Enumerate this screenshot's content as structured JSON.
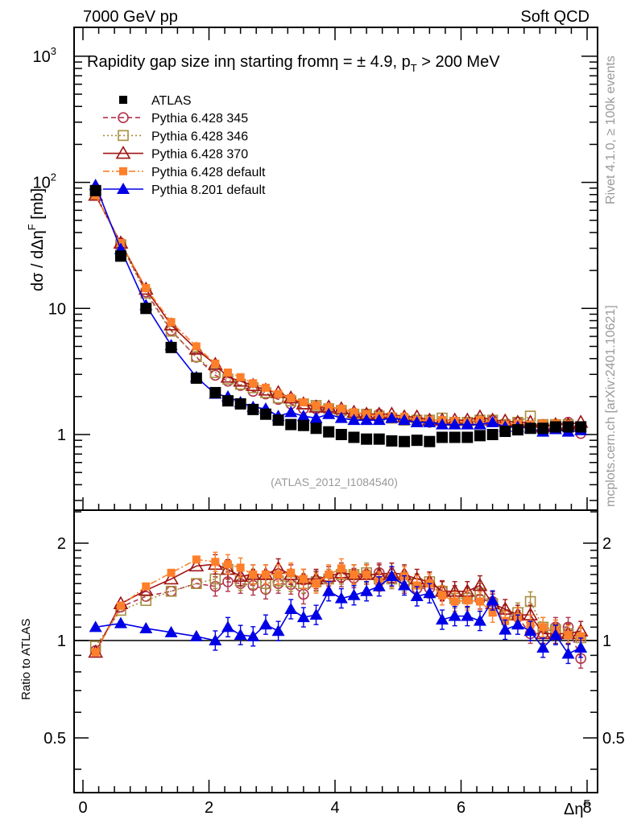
{
  "header": {
    "left": "7000 GeV pp",
    "right": "Soft QCD"
  },
  "side_labels": {
    "rivet": "Rivet 4.1.0, ≥ 100k events",
    "mcplots": "mcplots.cern.ch [arXiv:2401.10621]"
  },
  "chart_data": [
    {
      "type": "line",
      "panel": "main",
      "title": "Rapidity gap size in η starting from η = ± 4.9, p_T > 200 MeV",
      "title_parts": {
        "main": "Rapidity gap size inη starting fromη = ± 4.9, p",
        "sub": "T",
        "tail": " > 200 MeV"
      },
      "ylabel": "dσ / dΔη",
      "ylabel_sup": "F",
      "ylabel_unit": " [mb]",
      "xlabel": "Δη",
      "xlabel_sup": "F",
      "yscale": "log",
      "ylim": [
        0.3,
        1700
      ],
      "xlim": [
        -0.15,
        8.15
      ],
      "yticks": [
        {
          "v": 1,
          "label": "1"
        },
        {
          "v": 10,
          "label": "10"
        },
        {
          "v": 100,
          "label": "10",
          "sup": "2"
        },
        {
          "v": 1000,
          "label": "10",
          "sup": "3"
        }
      ],
      "watermark": "(ATLAS_2012_I1084540)",
      "legend": "top-left",
      "x": [
        0.2,
        0.6,
        1.0,
        1.4,
        1.8,
        2.1,
        2.3,
        2.5,
        2.7,
        2.9,
        3.1,
        3.3,
        3.5,
        3.7,
        3.9,
        4.1,
        4.3,
        4.5,
        4.7,
        4.9,
        5.1,
        5.3,
        5.5,
        5.7,
        5.9,
        6.1,
        6.3,
        6.5,
        6.7,
        6.9,
        7.1,
        7.3,
        7.5,
        7.7,
        7.9
      ],
      "series": [
        {
          "name": "ATLAS",
          "color": "#000000",
          "marker": "square-filled",
          "line": "none",
          "values": [
            86,
            26,
            10,
            4.9,
            2.8,
            2.15,
            1.85,
            1.75,
            1.58,
            1.45,
            1.3,
            1.2,
            1.18,
            1.12,
            1.05,
            1.0,
            0.95,
            0.92,
            0.92,
            0.89,
            0.88,
            0.9,
            0.88,
            0.95,
            0.95,
            0.95,
            0.98,
            1.0,
            1.06,
            1.09,
            1.12,
            1.12,
            1.15,
            1.15,
            1.15
          ]
        },
        {
          "name": "Pythia 6.428 345",
          "color": "#b2334c",
          "marker": "circle-open",
          "line": "dashed",
          "values": [
            79,
            33,
            13.5,
            6.7,
            4.1,
            2.95,
            2.65,
            2.45,
            2.2,
            2.1,
            1.9,
            1.75,
            1.6,
            1.6,
            1.6,
            1.5,
            1.45,
            1.45,
            1.45,
            1.35,
            1.3,
            1.3,
            1.25,
            1.25,
            1.25,
            1.25,
            1.3,
            1.3,
            1.2,
            1.25,
            1.15,
            1.2,
            1.2,
            1.25,
            1.02
          ]
        },
        {
          "name": "Pythia 6.428 346",
          "color": "#a98d3f",
          "marker": "square-open",
          "line": "dotted",
          "values": [
            81,
            32,
            13.2,
            6.6,
            4.15,
            3.1,
            2.75,
            2.5,
            2.35,
            2.15,
            1.95,
            1.85,
            1.75,
            1.7,
            1.6,
            1.55,
            1.45,
            1.45,
            1.4,
            1.35,
            1.3,
            1.3,
            1.3,
            1.35,
            1.25,
            1.25,
            1.3,
            1.3,
            1.2,
            1.25,
            1.4,
            1.2,
            1.2,
            1.2,
            1.15
          ]
        },
        {
          "name": "Pythia 6.428 370",
          "color": "#a01414",
          "marker": "triangle-open",
          "line": "solid",
          "values": [
            79,
            33,
            14.2,
            7.4,
            4.75,
            3.6,
            2.85,
            2.65,
            2.45,
            2.25,
            2.15,
            1.95,
            1.75,
            1.65,
            1.65,
            1.6,
            1.5,
            1.45,
            1.45,
            1.45,
            1.38,
            1.38,
            1.3,
            1.3,
            1.3,
            1.3,
            1.38,
            1.3,
            1.28,
            1.25,
            1.25,
            1.15,
            1.2,
            1.2,
            1.25
          ]
        },
        {
          "name": "Pythia 6.428 default",
          "color": "#ff7f2a",
          "marker": "square-filled-small",
          "line": "dashdot",
          "values": [
            79,
            33,
            14.5,
            7.8,
            5.0,
            3.65,
            3.1,
            2.85,
            2.55,
            2.35,
            2.1,
            1.95,
            1.8,
            1.7,
            1.65,
            1.6,
            1.5,
            1.45,
            1.4,
            1.4,
            1.38,
            1.3,
            1.3,
            1.3,
            1.28,
            1.25,
            1.3,
            1.25,
            1.2,
            1.22,
            1.2,
            1.22,
            1.22,
            1.2,
            1.18
          ]
        },
        {
          "name": "Pythia 8.201 default",
          "color": "#0000e6",
          "marker": "triangle-filled",
          "line": "solid",
          "values": [
            95,
            29.5,
            10.6,
            5.1,
            2.85,
            2.1,
            2.0,
            1.8,
            1.65,
            1.6,
            1.4,
            1.5,
            1.4,
            1.35,
            1.45,
            1.35,
            1.3,
            1.3,
            1.3,
            1.35,
            1.3,
            1.25,
            1.25,
            1.2,
            1.2,
            1.2,
            1.2,
            1.25,
            1.15,
            1.15,
            1.12,
            1.05,
            1.1,
            1.05,
            1.08
          ]
        }
      ]
    },
    {
      "type": "line",
      "panel": "ratio",
      "ylabel": "Ratio to ATLAS",
      "yscale": "log",
      "ylim": [
        0.39,
        2.55
      ],
      "yticks": [
        {
          "v": 0.5,
          "label": "0.5"
        },
        {
          "v": 1,
          "label": "1"
        },
        {
          "v": 2,
          "label": "2"
        }
      ],
      "xticks": [
        {
          "v": 0,
          "label": "0"
        },
        {
          "v": 2,
          "label": "2"
        },
        {
          "v": 4,
          "label": "4"
        },
        {
          "v": 6,
          "label": "6"
        },
        {
          "v": 8,
          "label": "8"
        }
      ],
      "reference_line": 1,
      "x": [
        0.2,
        0.6,
        1.0,
        1.4,
        1.8,
        2.1,
        2.3,
        2.5,
        2.7,
        2.9,
        3.1,
        3.3,
        3.5,
        3.7,
        3.9,
        4.1,
        4.3,
        4.5,
        4.7,
        4.9,
        5.1,
        5.3,
        5.5,
        5.7,
        5.9,
        6.1,
        6.3,
        6.5,
        6.7,
        6.9,
        7.1,
        7.3,
        7.5,
        7.7,
        7.9
      ],
      "series": [
        {
          "name": "Pythia 6.428 345",
          "color": "#b2334c",
          "marker": "circle-open",
          "line": "dashed",
          "values": [
            0.93,
            1.27,
            1.37,
            1.42,
            1.5,
            1.47,
            1.52,
            1.5,
            1.48,
            1.44,
            1.5,
            1.49,
            1.39,
            1.53,
            1.55,
            1.57,
            1.56,
            1.6,
            1.62,
            1.55,
            1.5,
            1.45,
            1.45,
            1.43,
            1.38,
            1.36,
            1.34,
            1.32,
            1.2,
            1.18,
            1.05,
            1.05,
            1.1,
            1.1,
            0.88
          ]
        },
        {
          "name": "Pythia 6.428 346",
          "color": "#a98d3f",
          "marker": "square-open",
          "line": "dotted",
          "values": [
            0.96,
            1.24,
            1.33,
            1.42,
            1.5,
            1.55,
            1.66,
            1.53,
            1.55,
            1.5,
            1.53,
            1.52,
            1.5,
            1.52,
            1.55,
            1.6,
            1.6,
            1.62,
            1.55,
            1.55,
            1.52,
            1.5,
            1.52,
            1.42,
            1.35,
            1.35,
            1.4,
            1.3,
            1.2,
            1.22,
            1.32,
            1.1,
            1.08,
            1.05,
            1.02
          ]
        },
        {
          "name": "Pythia 6.428 370",
          "color": "#a01414",
          "marker": "triangle-open",
          "line": "solid",
          "values": [
            0.92,
            1.3,
            1.43,
            1.55,
            1.7,
            1.72,
            1.66,
            1.58,
            1.6,
            1.6,
            1.67,
            1.6,
            1.55,
            1.55,
            1.58,
            1.62,
            1.6,
            1.6,
            1.6,
            1.62,
            1.6,
            1.55,
            1.52,
            1.42,
            1.42,
            1.42,
            1.48,
            1.3,
            1.25,
            1.2,
            1.2,
            1.05,
            1.05,
            1.05,
            1.07
          ]
        },
        {
          "name": "Pythia 6.428 default",
          "color": "#ff7f2a",
          "marker": "square-filled-small",
          "line": "dashdot",
          "values": [
            0.92,
            1.28,
            1.47,
            1.62,
            1.78,
            1.75,
            1.72,
            1.68,
            1.6,
            1.6,
            1.6,
            1.62,
            1.55,
            1.5,
            1.6,
            1.67,
            1.6,
            1.6,
            1.52,
            1.57,
            1.58,
            1.48,
            1.5,
            1.38,
            1.32,
            1.33,
            1.32,
            1.22,
            1.15,
            1.18,
            1.12,
            1.1,
            1.08,
            1.04,
            1.03
          ]
        },
        {
          "name": "Pythia 8.201 default",
          "color": "#0000e6",
          "marker": "triangle-filled",
          "line": "solid",
          "values": [
            1.1,
            1.13,
            1.09,
            1.06,
            1.03,
            1.0,
            1.1,
            1.04,
            1.03,
            1.12,
            1.07,
            1.25,
            1.18,
            1.2,
            1.42,
            1.35,
            1.38,
            1.42,
            1.47,
            1.58,
            1.48,
            1.37,
            1.4,
            1.16,
            1.19,
            1.19,
            1.15,
            1.33,
            1.08,
            1.12,
            1.07,
            0.95,
            1.04,
            0.91,
            0.95
          ]
        }
      ]
    }
  ]
}
